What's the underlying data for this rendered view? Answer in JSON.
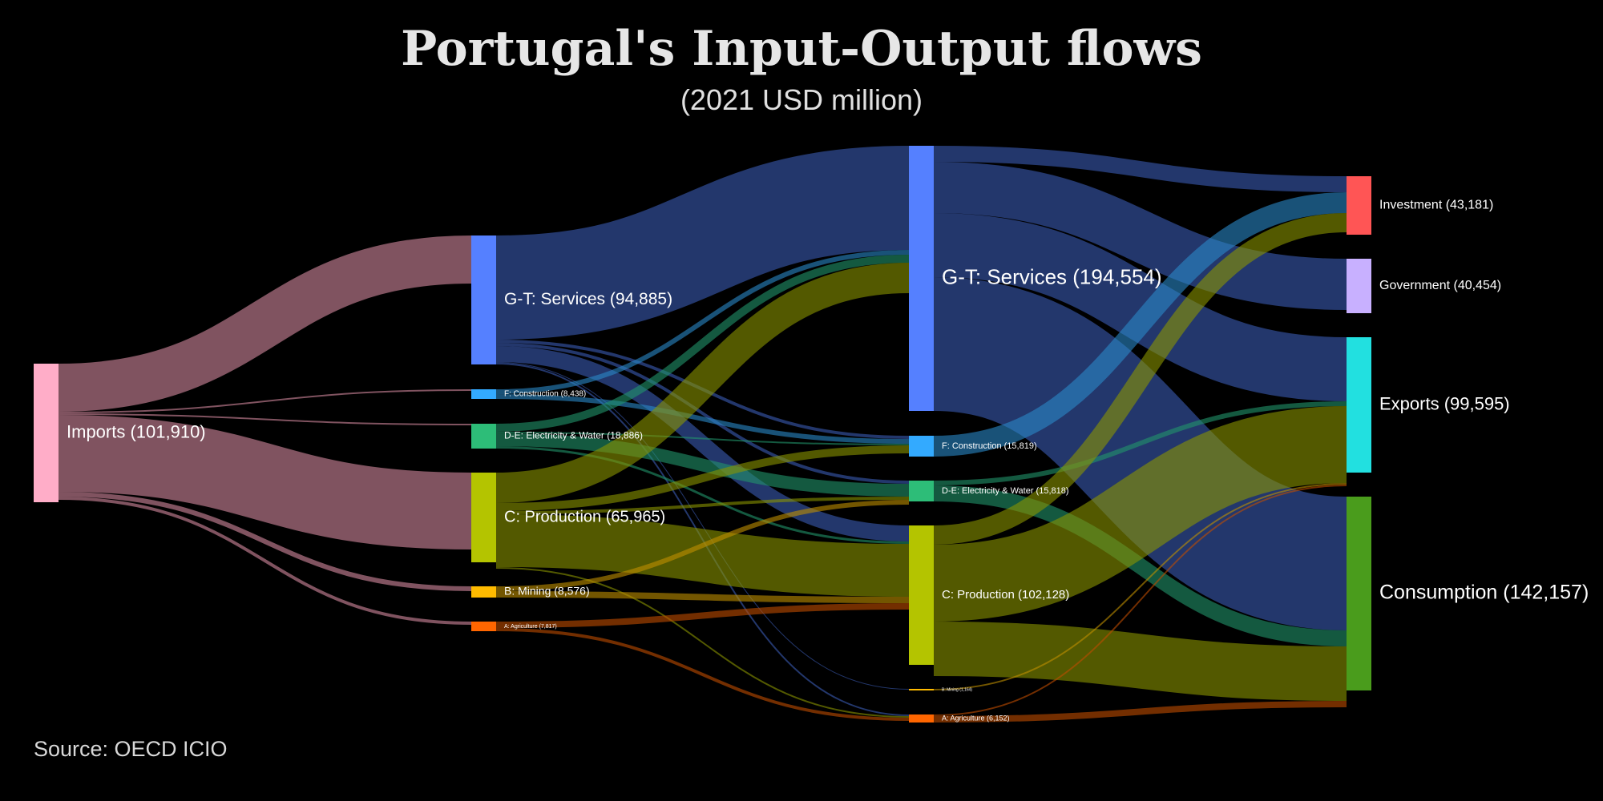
{
  "title": "Portugal's Input-Output flows",
  "subtitle": "(2021 USD million)",
  "source": "Source: OECD ICIO",
  "nodes": [
    {
      "id": "imports",
      "label": "Imports (101,910)",
      "value": 101910,
      "color": "#ffadc8"
    },
    {
      "id": "s1",
      "label": "G-T: Services (94,885)",
      "value": 94885,
      "color": "#5580ff"
    },
    {
      "id": "f1",
      "label": "F: Construction (8,438)",
      "value": 8438,
      "color": "#33aaff"
    },
    {
      "id": "de1",
      "label": "D-E: Electricity & Water (18,886)",
      "value": 18886,
      "color": "#2dbd78"
    },
    {
      "id": "c1",
      "label": "C: Production (65,965)",
      "value": 65965,
      "color": "#b4c400"
    },
    {
      "id": "b1",
      "label": "B: Mining (8,576)",
      "value": 8576,
      "color": "#ffbb00"
    },
    {
      "id": "a1",
      "label": "A: Agriculture (7,817)",
      "value": 7817,
      "color": "#ff6600"
    },
    {
      "id": "s2",
      "label": "G-T: Services (194,554)",
      "value": 194554,
      "color": "#5580ff"
    },
    {
      "id": "f2",
      "label": "F: Construction (15,819)",
      "value": 15819,
      "color": "#33aaff"
    },
    {
      "id": "de2",
      "label": "D-E: Electricity & Water (15,818)",
      "value": 15818,
      "color": "#2dbd78"
    },
    {
      "id": "c2",
      "label": "C: Production (102,128)",
      "value": 102128,
      "color": "#b4c400"
    },
    {
      "id": "b2",
      "label": "B: Mining (1,164)",
      "value": 1164,
      "color": "#ffbb00"
    },
    {
      "id": "a2",
      "label": "A: Agriculture (6,152)",
      "value": 6152,
      "color": "#ff6600"
    },
    {
      "id": "inv",
      "label": "Investment (43,181)",
      "value": 43181,
      "color": "#ff5555"
    },
    {
      "id": "gov",
      "label": "Government (40,454)",
      "value": 40454,
      "color": "#c8b0ff"
    },
    {
      "id": "exp",
      "label": "Exports (99,595)",
      "value": 99595,
      "color": "#22e0e0"
    },
    {
      "id": "con",
      "label": "Consumption (142,157)",
      "value": 142157,
      "color": "#4a9c1c"
    }
  ]
}
